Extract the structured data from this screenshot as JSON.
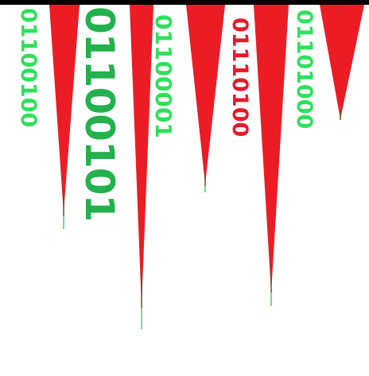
{
  "colors": {
    "background": "#ffffff",
    "bar": "#000000",
    "spike": "#ec1c24",
    "spike_stem": "#7a4a1a",
    "stem_tip": "#3ddc5a",
    "green_text": "#2ee05c",
    "green_text_dark": "#22b14c",
    "red_text": "#e8182a"
  },
  "binary_labels": [
    {
      "text": "01100100",
      "color": "#2ee05c"
    },
    {
      "text": "01100101",
      "color": "#22b14c"
    },
    {
      "text": "01100001",
      "color": "#2ee05c"
    },
    {
      "text": "01110100",
      "color": "#e8182a"
    },
    {
      "text": "01101000",
      "color": "#2ee05c"
    }
  ]
}
